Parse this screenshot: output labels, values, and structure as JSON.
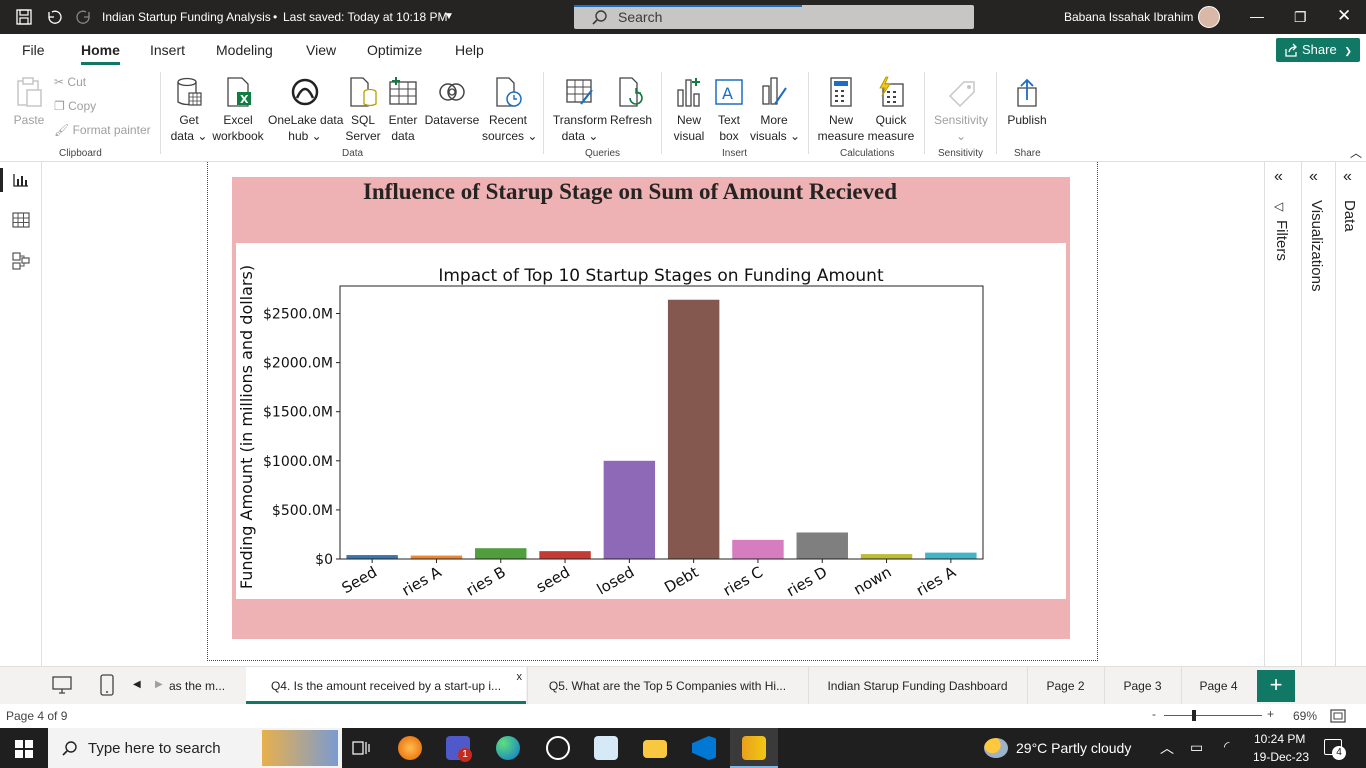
{
  "titlebar": {
    "title": "Indian Startup Funding Analysis",
    "saved": "Last saved: Today at 10:18 PM",
    "search_placeholder": "Search",
    "user": "Babana Issahak Ibrahim"
  },
  "menu": {
    "items": [
      "File",
      "Home",
      "Insert",
      "Modeling",
      "View",
      "Optimize",
      "Help"
    ],
    "share": "Share"
  },
  "ribbon": {
    "clipboard": {
      "paste": "Paste",
      "cut": "Cut",
      "copy": "Copy",
      "format_painter": "Format painter",
      "group": "Clipboard"
    },
    "data": {
      "get_data": [
        "Get",
        "data"
      ],
      "excel": [
        "Excel",
        "workbook"
      ],
      "onelake": [
        "OneLake data",
        "hub"
      ],
      "sql": [
        "SQL",
        "Server"
      ],
      "enter": [
        "Enter",
        "data"
      ],
      "dataverse": [
        "Dataverse",
        ""
      ],
      "recent": [
        "Recent",
        "sources"
      ],
      "group": "Data"
    },
    "queries": {
      "transform": [
        "Transform",
        "data"
      ],
      "refresh": [
        "Refresh",
        ""
      ],
      "group": "Queries"
    },
    "insert": {
      "new_visual": [
        "New",
        "visual"
      ],
      "text_box": [
        "Text",
        "box"
      ],
      "more_visuals": [
        "More",
        "visuals"
      ],
      "group": "Insert"
    },
    "calculations": {
      "new_measure": [
        "New",
        "measure"
      ],
      "quick_measure": [
        "Quick",
        "measure"
      ],
      "group": "Calculations"
    },
    "sensitivity": {
      "label": "Sensitivity",
      "group": "Sensitivity"
    },
    "share": {
      "publish": "Publish",
      "group": "Share"
    }
  },
  "visual": {
    "title": "Influence of Starup Stage on Sum of Amount Recieved"
  },
  "chart_data": {
    "type": "bar",
    "title": "Impact of Top 10 Startup Stages on Funding Amount",
    "ylabel": "Funding Amount (in millions and dollars)",
    "xlabel": "",
    "categories": [
      "Seed",
      "ries A",
      "ries B",
      "seed",
      "losed",
      "Debt",
      "ries C",
      "ries D",
      "nown",
      "ries A"
    ],
    "values": [
      40,
      35,
      110,
      80,
      1000,
      2640,
      195,
      270,
      50,
      65
    ],
    "colors": [
      "#3b75af",
      "#ef8636",
      "#519e3e",
      "#c53a32",
      "#8d69b8",
      "#84584e",
      "#d57dbf",
      "#7f7f7f",
      "#bcbc35",
      "#42b4c6"
    ],
    "yticks": [
      "$0",
      "$500.0M",
      "$1000.0M",
      "$1500.0M",
      "$2000.0M",
      "$2500.0M"
    ],
    "ytick_values": [
      0,
      500,
      1000,
      1500,
      2000,
      2500
    ],
    "ylim": [
      0,
      2780
    ],
    "grid": false,
    "legend": "none"
  },
  "panes": {
    "filters": "Filters",
    "visualizations": "Visualizations",
    "data": "Data"
  },
  "tabs": [
    "as the m...",
    "Q4. Is the amount received by a start-up i...",
    "Q5. What are the Top 5 Companies with Hi...",
    "Indian Starup Funding Dashboard",
    "Page 2",
    "Page 3",
    "Page 4"
  ],
  "tab_close": "x",
  "status": {
    "page": "Page 4 of 9",
    "zoom": "69%"
  },
  "taskbar": {
    "search_placeholder": "Type here to search",
    "weather": "29°C  Partly cloudy",
    "time": "10:24 PM",
    "date": "19-Dec-23",
    "notifications": "4",
    "teams_badge": "1"
  }
}
